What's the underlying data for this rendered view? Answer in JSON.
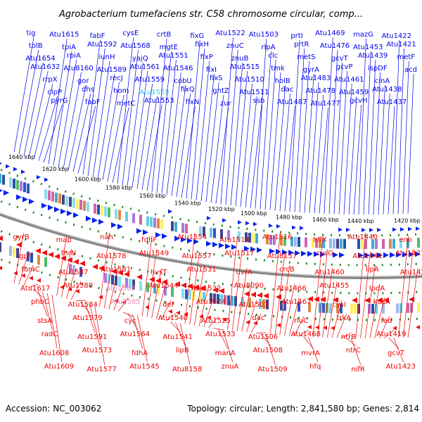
{
  "title": "Agrobacterium tumefaciens str. C58 chromosome circular, comp...",
  "footer": {
    "accession": "Accession: NC_003062",
    "summary": "Topology: circular; Length: 2,841,580 bp; Genes: 2,814"
  },
  "colors": {
    "forward_label": "#0000ee",
    "reverse_label": "#ee0000",
    "highlight_forward": "#33ccee",
    "highlight_reverse": "#ee88bb",
    "backbone": "#888888",
    "ticks": "#228822"
  },
  "kbp_ticks": [
    "1640 kbp",
    "1620 kbp",
    "1600 kbp",
    "1580 kbp",
    "1560 kbp",
    "1540 kbp",
    "1520 kbp",
    "1500 kbp",
    "1480 kbp",
    "1460 kbp",
    "1440 kbp",
    "1420 kbp"
  ],
  "forward_genes": [
    "tig",
    "tolB",
    "Atu1654",
    "Atu1632",
    "rrpX",
    "clpP",
    "pyrG",
    "Atu1615",
    "tpiA",
    "rpiA",
    "Atu8160",
    "gor",
    "dhs",
    "fabF",
    "fabF",
    "Atu1592",
    "iunH",
    "Atu1589",
    "recJ",
    "hom",
    "metC",
    "cysE",
    "Atu1568",
    "yajQ",
    "Atu1561",
    "Atu1559",
    "Atu1555",
    "Atu1553",
    "crtB",
    "mgtE",
    "Atu1551",
    "Atu1546",
    "cobU",
    "fixQ",
    "fixN",
    "fixG",
    "fixH",
    "fixP",
    "fixI",
    "fixS",
    "gntZ",
    "zur",
    "Atu1522",
    "znuC",
    "znuB",
    "Atu1515",
    "Atu1510",
    "Atu1511",
    "ssb",
    "Atu1503",
    "rlpA",
    "clc",
    "tmk",
    "holB",
    "dac",
    "Atu1487",
    "prtI",
    "prtR",
    "metS",
    "gyrA",
    "Atu1483",
    "Atu1478",
    "Atu1477",
    "Atu1469",
    "Atu1476",
    "gcvT",
    "gcvP",
    "Atu1461",
    "Atu1459",
    "gcvH",
    "mazG",
    "Atu1453",
    "Atu1439",
    "ispDF",
    "cinA",
    "Atu1438",
    "Atu1437",
    "Atu1422",
    "Atu1421",
    "metF",
    "acd"
  ],
  "reverse_genes": [
    "gyrB",
    "gph",
    "fumC",
    "Atu1617",
    "phbC",
    "stsA",
    "radC",
    "Atu1608",
    "Atu1609",
    "map",
    "fnrN",
    "Atu1587",
    "Atu1580",
    "Atu1584",
    "Atu1579",
    "Atu1591",
    "Atu1573",
    "Atu1577",
    "nah",
    "Atu1578",
    "Atu1581",
    "Atu1583",
    "Atu1585",
    "cyc",
    "Atu1564",
    "fdhA",
    "Atu1545",
    "fdhF",
    "Atu1549",
    "hvsT",
    "Atu1544",
    "def",
    "Atu1540",
    "Atu1541",
    "lipB",
    "Atu8158",
    "Atu1554",
    "Atu1557",
    "Atu1531",
    "Atu1532",
    "Atu1524",
    "Atu1525",
    "Atu1533",
    "manA",
    "znuA",
    "Atu1514",
    "Atu1517",
    "uvrA",
    "Atu8090",
    "Atu1501",
    "dac",
    "Atu1506",
    "Atu1508",
    "Atu1509",
    "Atu1516",
    "Atu8157",
    "crcB",
    "Atu1466",
    "Atu1467",
    "rluC",
    "Atu1468",
    "mvrA",
    "hfq",
    "hflX",
    "cysG",
    "Atu1460",
    "Atu1455",
    "cysI",
    "trkA",
    "ntrB",
    "ntrC",
    "nifR",
    "Atu1440",
    "Atu1441",
    "lipA",
    "lpdA",
    "kdsA",
    "fad",
    "Atu1419",
    "gcvT",
    "Atu1423",
    "eno",
    "Atu1427",
    "Atu1428"
  ]
}
